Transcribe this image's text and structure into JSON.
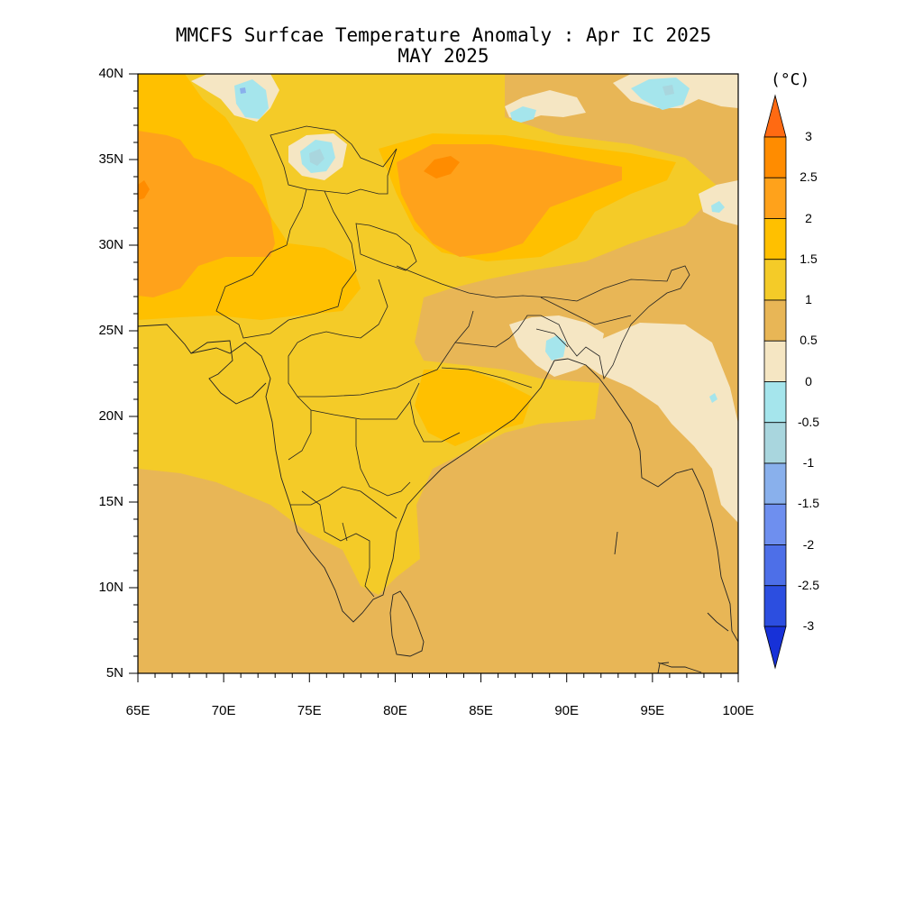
{
  "title": {
    "line1": "MMCFS Surfcae Temperature Anomaly : Apr IC 2025",
    "line2": "MAY 2025"
  },
  "map": {
    "lon_labels": [
      "65E",
      "70E",
      "75E",
      "80E",
      "85E",
      "90E",
      "95E",
      "100E"
    ],
    "lat_labels": [
      "40N",
      "35N",
      "30N",
      "25N",
      "20N",
      "15N",
      "10N",
      "5N"
    ],
    "lon_range": [
      65,
      100
    ],
    "lat_range": [
      5,
      40
    ],
    "background_category": "0.5 to 1"
  },
  "colorbar": {
    "units": "(°C)",
    "labels": [
      "3",
      "2.5",
      "2",
      "1.5",
      "1",
      "0.5",
      "0",
      "-0.5",
      "-1",
      "-1.5",
      "-2",
      "-2.5",
      "-3"
    ],
    "colors": [
      "#ff6a12",
      "#ff8c00",
      "#ffa21b",
      "#ffc000",
      "#f4cb28",
      "#e8b656",
      "#f5e6c3",
      "#a5e5ec",
      "#a9d6de",
      "#89b0ec",
      "#6e8fef",
      "#4d6fe8",
      "#2c4ee0",
      "#1731d8"
    ],
    "colors_order": "top arrow (>3) down to bottom arrow (<-3)"
  }
}
